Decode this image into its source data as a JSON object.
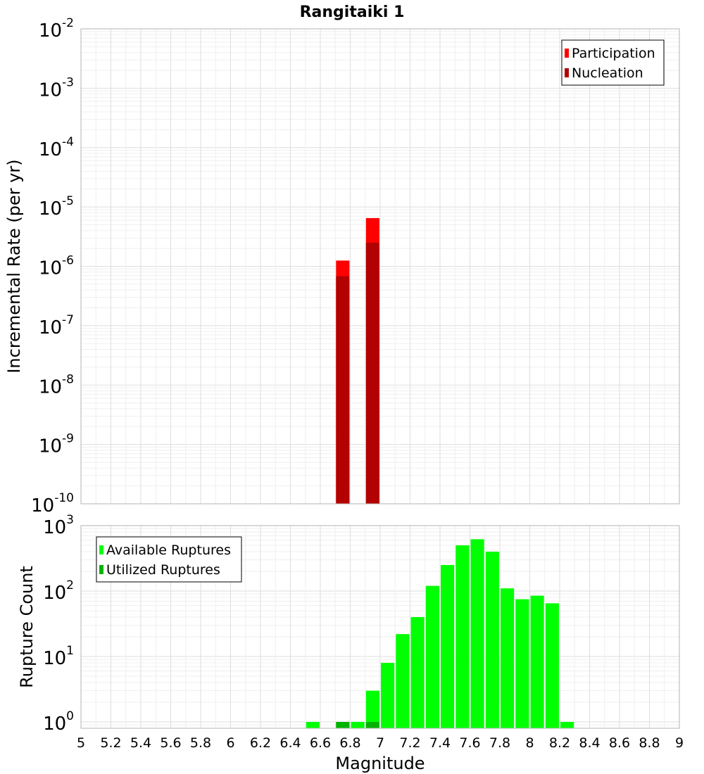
{
  "title": "Rangitaiki 1",
  "chart_data": [
    {
      "type": "bar",
      "title": "Rangitaiki 1",
      "xlabel": "Magnitude",
      "ylabel": "Incremental Rate (per yr)",
      "yscale": "log",
      "ylim": [
        1e-10,
        0.01
      ],
      "xlim": [
        5,
        9
      ],
      "grid": true,
      "legend_position": "top-right",
      "ytick_mantissa": "10",
      "ytick_exponents": [
        "-10",
        "-9",
        "-8",
        "-7",
        "-6",
        "-5",
        "-4",
        "-3",
        "-2"
      ],
      "series": [
        {
          "name": "Participation",
          "color": "#ff0000",
          "x": [
            6.75,
            6.95
          ],
          "values": [
            1.25e-06,
            6.5e-06
          ]
        },
        {
          "name": "Nucleation",
          "color": "#b30000",
          "x": [
            6.75,
            6.95
          ],
          "values": [
            6.8e-07,
            2.5e-06
          ]
        }
      ]
    },
    {
      "type": "bar",
      "xlabel": "Magnitude",
      "ylabel": "Rupture Count",
      "yscale": "log",
      "ylim": [
        0.8,
        1000
      ],
      "xlim": [
        5,
        9
      ],
      "grid": true,
      "legend_position": "top-left",
      "ytick_mantissa": "10",
      "ytick_exponents": [
        "0",
        "1",
        "2",
        "3"
      ],
      "xticks": [
        "5",
        "5.2",
        "5.4",
        "5.6",
        "5.8",
        "6",
        "6.2",
        "6.4",
        "6.6",
        "6.8",
        "7",
        "7.2",
        "7.4",
        "7.6",
        "7.8",
        "8",
        "8.2",
        "8.4",
        "8.6",
        "8.8",
        "9"
      ],
      "series": [
        {
          "name": "Available Ruptures",
          "color": "#00ff00",
          "x": [
            6.55,
            6.75,
            6.85,
            6.95,
            7.05,
            7.15,
            7.25,
            7.35,
            7.45,
            7.55,
            7.65,
            7.75,
            7.85,
            7.95,
            8.05,
            8.15,
            8.25
          ],
          "values": [
            1,
            1,
            1,
            3,
            8,
            22,
            40,
            120,
            250,
            500,
            620,
            400,
            110,
            75,
            85,
            65,
            1
          ]
        },
        {
          "name": "Utilized Ruptures",
          "color": "#00b300",
          "x": [
            6.75,
            6.95
          ],
          "values": [
            1,
            1
          ]
        }
      ]
    }
  ]
}
